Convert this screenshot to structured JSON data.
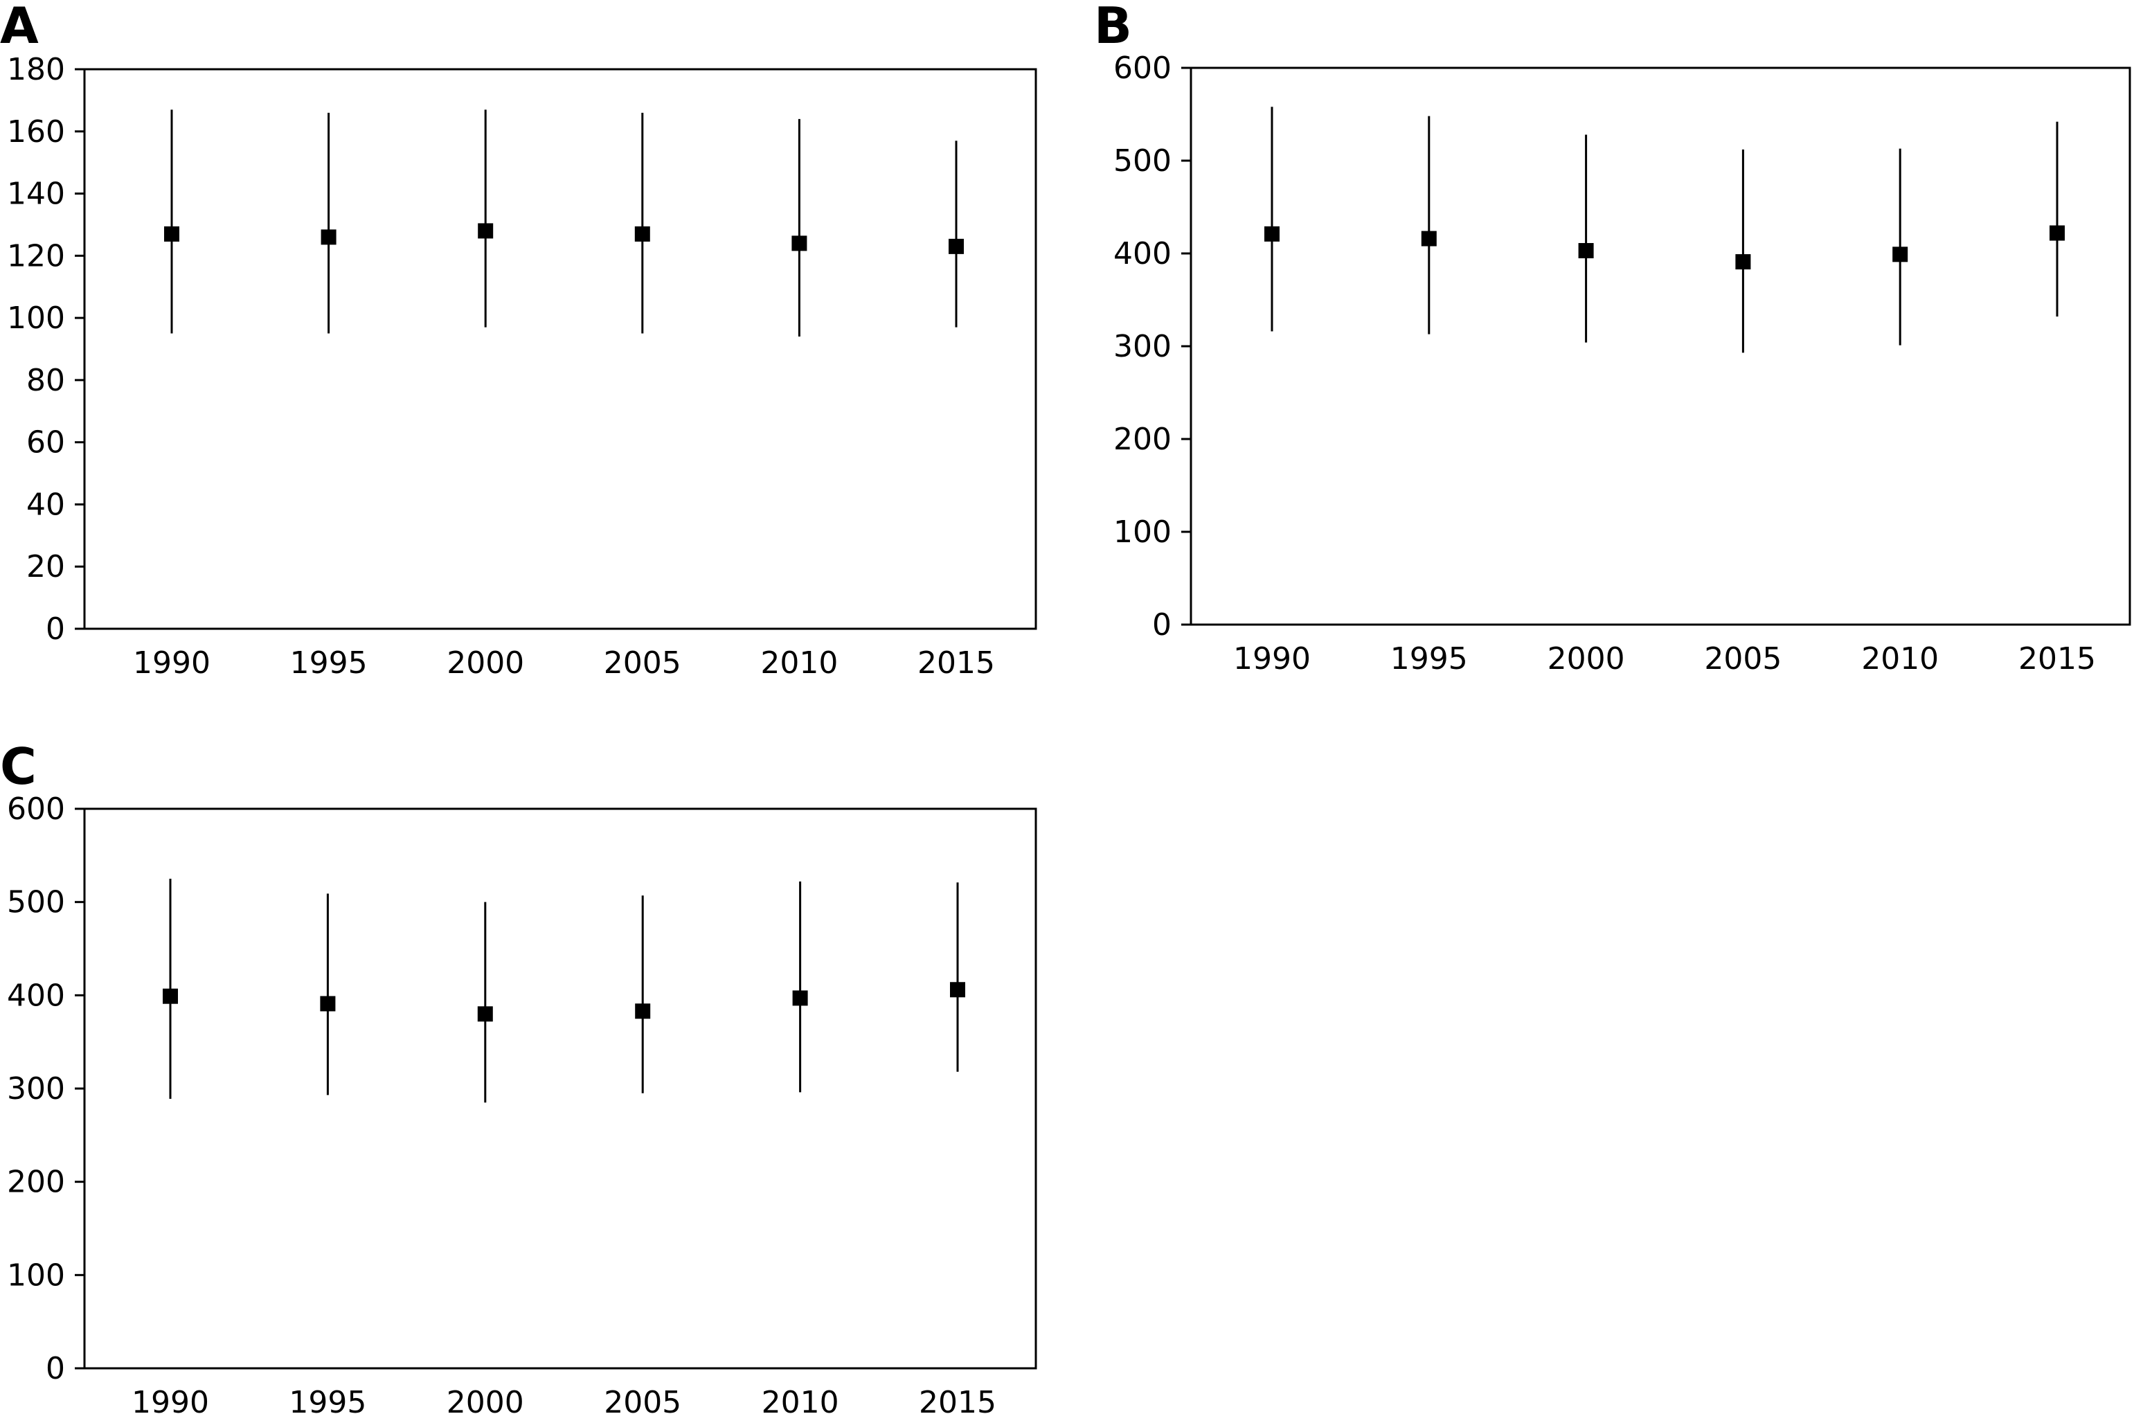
{
  "panels": [
    "A",
    "B",
    "C"
  ],
  "chart_data": [
    {
      "panel": "A",
      "type": "scatter",
      "x": [
        1990,
        1995,
        2000,
        2005,
        2010,
        2015
      ],
      "y": [
        127,
        126,
        128,
        127,
        124,
        123
      ],
      "y_lower": [
        95,
        95,
        97,
        95,
        94,
        97
      ],
      "y_upper": [
        167,
        166,
        167,
        166,
        164,
        157
      ],
      "ylim": [
        0,
        180
      ],
      "yticks": [
        0,
        20,
        40,
        60,
        80,
        100,
        120,
        140,
        160,
        180
      ],
      "xticks": [
        "1990",
        "1995",
        "2000",
        "2005",
        "2010",
        "2015"
      ],
      "title": "",
      "xlabel": "",
      "ylabel": "",
      "grid": false,
      "marker": "square",
      "color": "#000000"
    },
    {
      "panel": "B",
      "type": "scatter",
      "x": [
        1990,
        1995,
        2000,
        2005,
        2010,
        2015
      ],
      "y": [
        421,
        416,
        403,
        391,
        399,
        422
      ],
      "y_lower": [
        316,
        313,
        304,
        293,
        301,
        332
      ],
      "y_upper": [
        558,
        548,
        528,
        512,
        513,
        542
      ],
      "ylim": [
        0,
        600
      ],
      "yticks": [
        0,
        100,
        200,
        300,
        400,
        500,
        600
      ],
      "xticks": [
        "1990",
        "1995",
        "2000",
        "2005",
        "2010",
        "2015"
      ],
      "title": "",
      "xlabel": "",
      "ylabel": "",
      "grid": false,
      "marker": "square",
      "color": "#000000"
    },
    {
      "panel": "C",
      "type": "scatter",
      "x": [
        1990,
        1995,
        2000,
        2005,
        2010,
        2015
      ],
      "y": [
        399,
        391,
        380,
        383,
        397,
        406
      ],
      "y_lower": [
        289,
        293,
        285,
        295,
        296,
        318
      ],
      "y_upper": [
        525,
        509,
        500,
        507,
        522,
        521
      ],
      "ylim": [
        0,
        600
      ],
      "yticks": [
        0,
        100,
        200,
        300,
        400,
        500,
        600
      ],
      "xticks": [
        "1990",
        "1995",
        "2000",
        "2005",
        "2010",
        "2015"
      ],
      "title": "",
      "xlabel": "",
      "ylabel": "",
      "grid": false,
      "marker": "square",
      "color": "#000000"
    }
  ]
}
